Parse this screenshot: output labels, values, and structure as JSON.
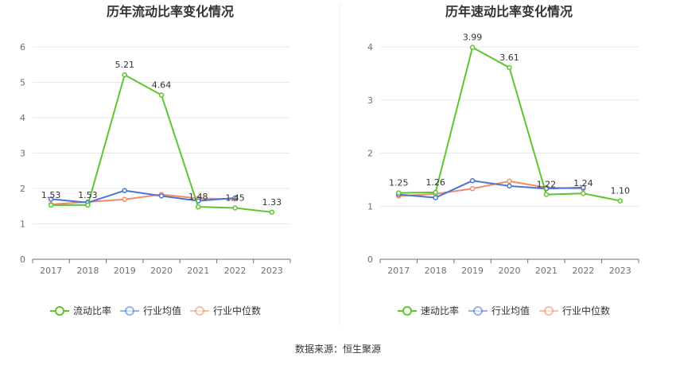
{
  "source_text": "数据来源：恒生聚源",
  "colors": {
    "main": "#5fc52e",
    "industry_avg": "#4a74d6",
    "industry_median": "#f08c6c",
    "grid": "#e6e8ee",
    "axis": "#6e7079"
  },
  "chart_data": [
    {
      "type": "line",
      "title": "历年流动比率变化情况",
      "x": [
        "2017",
        "2018",
        "2019",
        "2020",
        "2021",
        "2022",
        "2023"
      ],
      "ylim": [
        0,
        6
      ],
      "yticks": [
        0,
        1,
        2,
        3,
        4,
        5,
        6
      ],
      "grid": true,
      "legend_position": "bottom-center",
      "series": [
        {
          "name": "流动比率",
          "color": "#5fc52e",
          "values": [
            1.53,
            1.53,
            5.21,
            4.64,
            1.48,
            1.45,
            1.33
          ],
          "labels": [
            "1.53",
            "1.53",
            "5.21",
            "4.64",
            "1.48",
            "1.45",
            "1.33"
          ]
        },
        {
          "name": "行业均值",
          "color": "#4a74d6",
          "values": [
            1.7,
            1.6,
            1.94,
            1.79,
            1.65,
            1.73,
            null
          ]
        },
        {
          "name": "行业中位数",
          "color": "#f08c6c",
          "values": [
            1.55,
            1.62,
            1.69,
            1.83,
            1.72,
            1.7,
            null
          ]
        }
      ]
    },
    {
      "type": "line",
      "title": "历年速动比率变化情况",
      "x": [
        "2017",
        "2018",
        "2019",
        "2020",
        "2021",
        "2022",
        "2023"
      ],
      "ylim": [
        0,
        4
      ],
      "yticks": [
        0,
        1,
        2,
        3,
        4
      ],
      "grid": true,
      "legend_position": "bottom-center",
      "series": [
        {
          "name": "速动比率",
          "color": "#5fc52e",
          "values": [
            1.25,
            1.26,
            3.99,
            3.61,
            1.22,
            1.24,
            1.1
          ],
          "labels": [
            "1.25",
            "1.26",
            "3.99",
            "3.61",
            "1.22",
            "1.24",
            "1.10"
          ]
        },
        {
          "name": "行业均值",
          "color": "#4a74d6",
          "values": [
            1.22,
            1.16,
            1.48,
            1.38,
            1.33,
            1.35,
            null
          ]
        },
        {
          "name": "行业中位数",
          "color": "#f08c6c",
          "values": [
            1.19,
            1.23,
            1.33,
            1.47,
            1.35,
            1.33,
            null
          ]
        }
      ]
    }
  ]
}
